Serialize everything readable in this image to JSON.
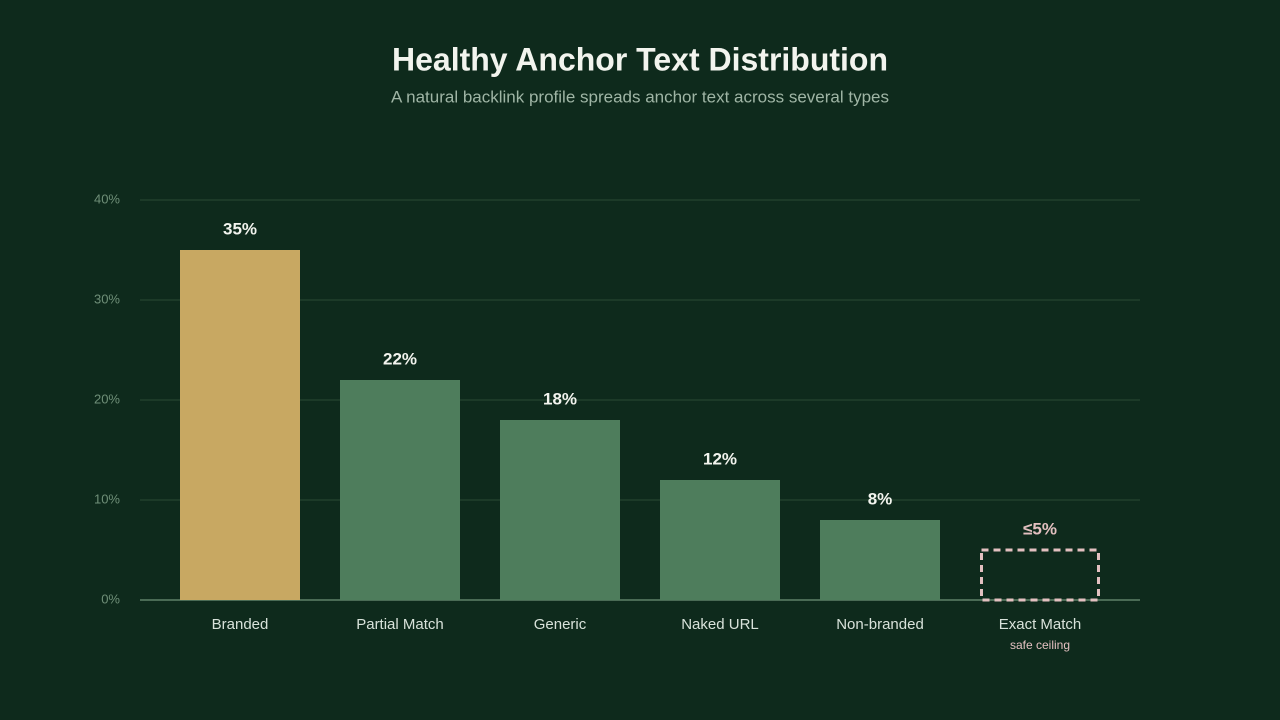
{
  "chart_data": {
    "type": "bar",
    "title": "Healthy Anchor Text Distribution",
    "subtitle": "A natural backlink profile spreads anchor text across several types",
    "categories": [
      "Branded",
      "Partial Match",
      "Generic",
      "Naked URL",
      "Non-branded",
      "Exact Match"
    ],
    "values": [
      35,
      22,
      18,
      12,
      8,
      5
    ],
    "value_labels": [
      "35%",
      "22%",
      "18%",
      "12%",
      "8%",
      "≤5%"
    ],
    "colors": [
      "#c8a862",
      "#4e7d5c",
      "#4e7d5c",
      "#4e7d5c",
      "#4e7d5c",
      "#e3c0c0"
    ],
    "styles": [
      "solid",
      "solid",
      "solid",
      "solid",
      "solid",
      "dashed"
    ],
    "annotation": {
      "text": "safe ceiling",
      "category": "Exact Match"
    },
    "ylim": [
      0,
      40
    ],
    "yticks": [
      {
        "value": 0,
        "label": "0%"
      },
      {
        "value": 10,
        "label": "10%"
      },
      {
        "value": 20,
        "label": "20%"
      },
      {
        "value": 30,
        "label": "30%"
      },
      {
        "value": 40,
        "label": "40%"
      }
    ],
    "grid": true
  }
}
